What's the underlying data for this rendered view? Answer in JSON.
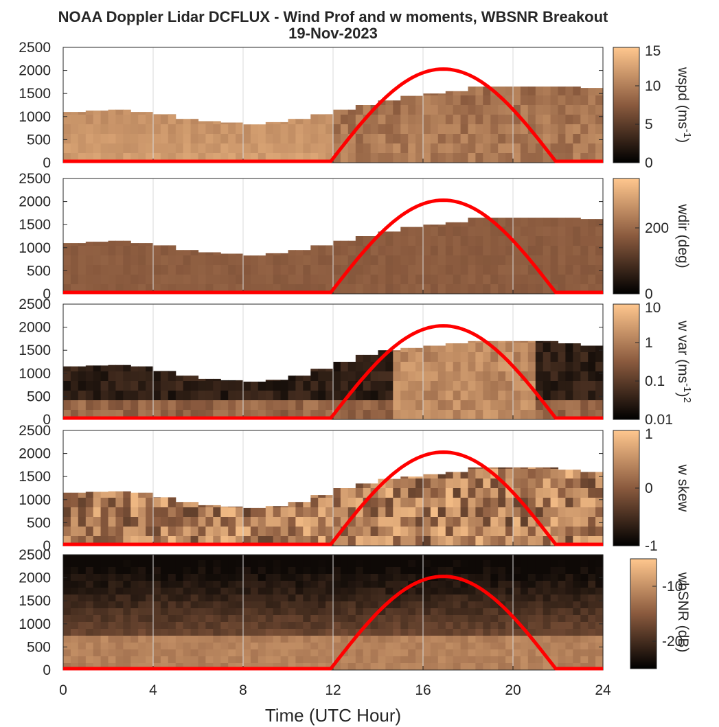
{
  "title": "NOAA Doppler Lidar DCFLUX - Wind Prof and w moments, WBSNR Breakout",
  "subtitle": "19-Nov-2023",
  "xlabel": "Time (UTC Hour)",
  "ylabel": "",
  "xticks": [
    0,
    4,
    8,
    12,
    16,
    20,
    24
  ],
  "yticks": [
    0,
    500,
    1000,
    1500,
    2000,
    2500
  ],
  "colormap": {
    "low": "#000000",
    "mid": "#8a5a3e",
    "high": "#ffc78e"
  },
  "overlay_color": "#ff0000",
  "chart_data": [
    {
      "type": "heatmap",
      "name": "wspd",
      "colorbar": {
        "label": "wspd (ms-1)",
        "label_main": "wspd (ms",
        "label_sup": "-1",
        "label_end": ")",
        "ticks": [
          "0",
          "5",
          "10",
          "15"
        ],
        "range": [
          0,
          15
        ],
        "scale": "linear"
      },
      "xlim": [
        0,
        24
      ],
      "ylim": [
        0,
        2500
      ],
      "top_m": [
        1100,
        1130,
        1150,
        1100,
        1050,
        950,
        900,
        870,
        830,
        880,
        950,
        1050,
        1150,
        1250,
        1350,
        1450,
        1500,
        1550,
        1650,
        1650,
        1650,
        1650,
        1650,
        1620
      ],
      "overlay": {
        "name": "solar-elevation",
        "x_start": 11.9,
        "x_peak": 16.9,
        "x_end": 21.9,
        "peak": 2000
      }
    },
    {
      "type": "heatmap",
      "name": "wdir",
      "colorbar": {
        "label": "wdir (deg)",
        "ticks": [
          "0",
          "200"
        ],
        "range": [
          0,
          350
        ],
        "scale": "linear"
      },
      "xlim": [
        0,
        24
      ],
      "ylim": [
        0,
        2500
      ],
      "top_m": [
        1100,
        1130,
        1150,
        1100,
        1050,
        950,
        900,
        870,
        830,
        880,
        950,
        1050,
        1150,
        1250,
        1350,
        1450,
        1500,
        1550,
        1650,
        1650,
        1650,
        1650,
        1650,
        1620
      ],
      "overlay": {
        "name": "solar-elevation",
        "x_start": 11.9,
        "x_peak": 16.9,
        "x_end": 21.9,
        "peak": 2000
      }
    },
    {
      "type": "heatmap",
      "name": "w var",
      "colorbar": {
        "label": "w var (ms-1)2",
        "label_main": "w var (ms",
        "label_sup": "-1",
        "label_end": ")",
        "label_sup2": "2",
        "ticks": [
          "0.01",
          "0.1",
          "1",
          "10"
        ],
        "range": [
          0.01,
          10
        ],
        "scale": "log"
      },
      "xlim": [
        0,
        24
      ],
      "ylim": [
        0,
        2500
      ],
      "top_m": [
        1150,
        1170,
        1180,
        1150,
        1050,
        950,
        880,
        850,
        820,
        860,
        950,
        1100,
        1250,
        1400,
        1500,
        1550,
        1600,
        1650,
        1700,
        1700,
        1700,
        1700,
        1650,
        1600
      ],
      "overlay": {
        "name": "solar-elevation",
        "x_start": 11.9,
        "x_peak": 16.9,
        "x_end": 21.9,
        "peak": 2000
      }
    },
    {
      "type": "heatmap",
      "name": "w skew",
      "colorbar": {
        "label": "w skew",
        "ticks": [
          "-1",
          "0",
          "1"
        ],
        "range": [
          -1,
          1
        ],
        "scale": "linear"
      },
      "xlim": [
        0,
        24
      ],
      "ylim": [
        0,
        2500
      ],
      "top_m": [
        1150,
        1170,
        1180,
        1150,
        1050,
        950,
        880,
        850,
        820,
        860,
        950,
        1100,
        1250,
        1350,
        1450,
        1500,
        1550,
        1600,
        1700,
        1700,
        1700,
        1700,
        1650,
        1600
      ],
      "overlay": {
        "name": "solar-elevation",
        "x_start": 11.9,
        "x_peak": 16.9,
        "x_end": 21.9,
        "peak": 2000
      }
    },
    {
      "type": "heatmap",
      "name": "wbSNR",
      "colorbar": {
        "label": "wbSNR (dB)",
        "ticks": [
          "-20",
          "-10"
        ],
        "range": [
          -25,
          -5
        ],
        "scale": "linear"
      },
      "xlim": [
        0,
        24
      ],
      "ylim": [
        0,
        2500
      ],
      "top_m": [
        2500,
        2500,
        2500,
        2500,
        2500,
        2500,
        2500,
        2500,
        2500,
        2500,
        2500,
        2500,
        2500,
        2500,
        2500,
        2500,
        2500,
        2500,
        2500,
        2500,
        2500,
        2500,
        2500,
        2500
      ],
      "overlay": {
        "name": "solar-elevation",
        "x_start": 11.9,
        "x_peak": 16.9,
        "x_end": 21.9,
        "peak": 2000
      }
    }
  ]
}
